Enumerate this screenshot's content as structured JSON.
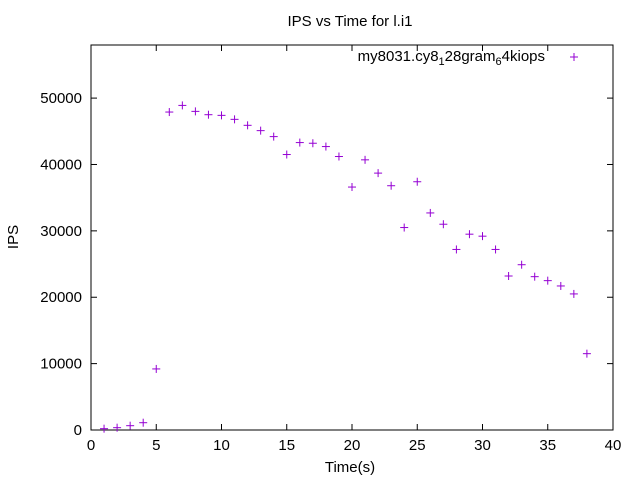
{
  "chart_data": {
    "type": "scatter",
    "title": "IPS vs Time for l.i1",
    "xlabel": "Time(s)",
    "ylabel": "IPS",
    "xlim": [
      0,
      40
    ],
    "ylim": [
      0,
      58000
    ],
    "xticks": [
      0,
      5,
      10,
      15,
      20,
      25,
      30,
      35,
      40
    ],
    "yticks": [
      0,
      10000,
      20000,
      30000,
      40000,
      50000
    ],
    "grid": false,
    "legend_position": "top-right",
    "marker": "plus",
    "series": [
      {
        "name": "my8031.cy8_128gram_64kiops",
        "name_parts": [
          "my8031.cy8",
          "1",
          "28gram",
          "6",
          "4kiops"
        ],
        "color": "#9400d3",
        "x": [
          1,
          2,
          3,
          4,
          5,
          6,
          7,
          8,
          9,
          10,
          11,
          12,
          13,
          14,
          15,
          16,
          17,
          18,
          19,
          20,
          21,
          22,
          23,
          24,
          25,
          26,
          27,
          28,
          29,
          30,
          31,
          32,
          33,
          34,
          35,
          36,
          37,
          38
        ],
        "y": [
          200,
          350,
          650,
          1100,
          9200,
          47900,
          48900,
          48000,
          47500,
          47400,
          46800,
          45900,
          45100,
          44200,
          41500,
          43300,
          43200,
          42700,
          41200,
          36600,
          40700,
          38700,
          36800,
          30500,
          37400,
          32700,
          31000,
          27200,
          29500,
          29200,
          27200,
          23200,
          24900,
          23100,
          22500,
          21700,
          20500,
          11500
        ]
      }
    ]
  }
}
